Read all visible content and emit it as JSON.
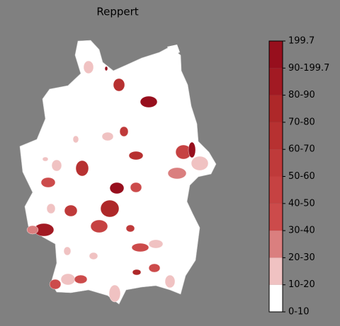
{
  "title": "Reppert",
  "legend": {
    "labels": [
      "0-10",
      "10-20",
      "20-30",
      "30-40",
      "40-50",
      "50-60",
      "60-70",
      "70-80",
      "80-90",
      "90-199.7",
      "199.7"
    ],
    "colors": [
      "#ffffff",
      "#f0c2c2",
      "#da7f7f",
      "#cc4b4b",
      "#c64242",
      "#bf3a3a",
      "#b73131",
      "#ae2829",
      "#a21a23",
      "#970f1d"
    ]
  }
}
